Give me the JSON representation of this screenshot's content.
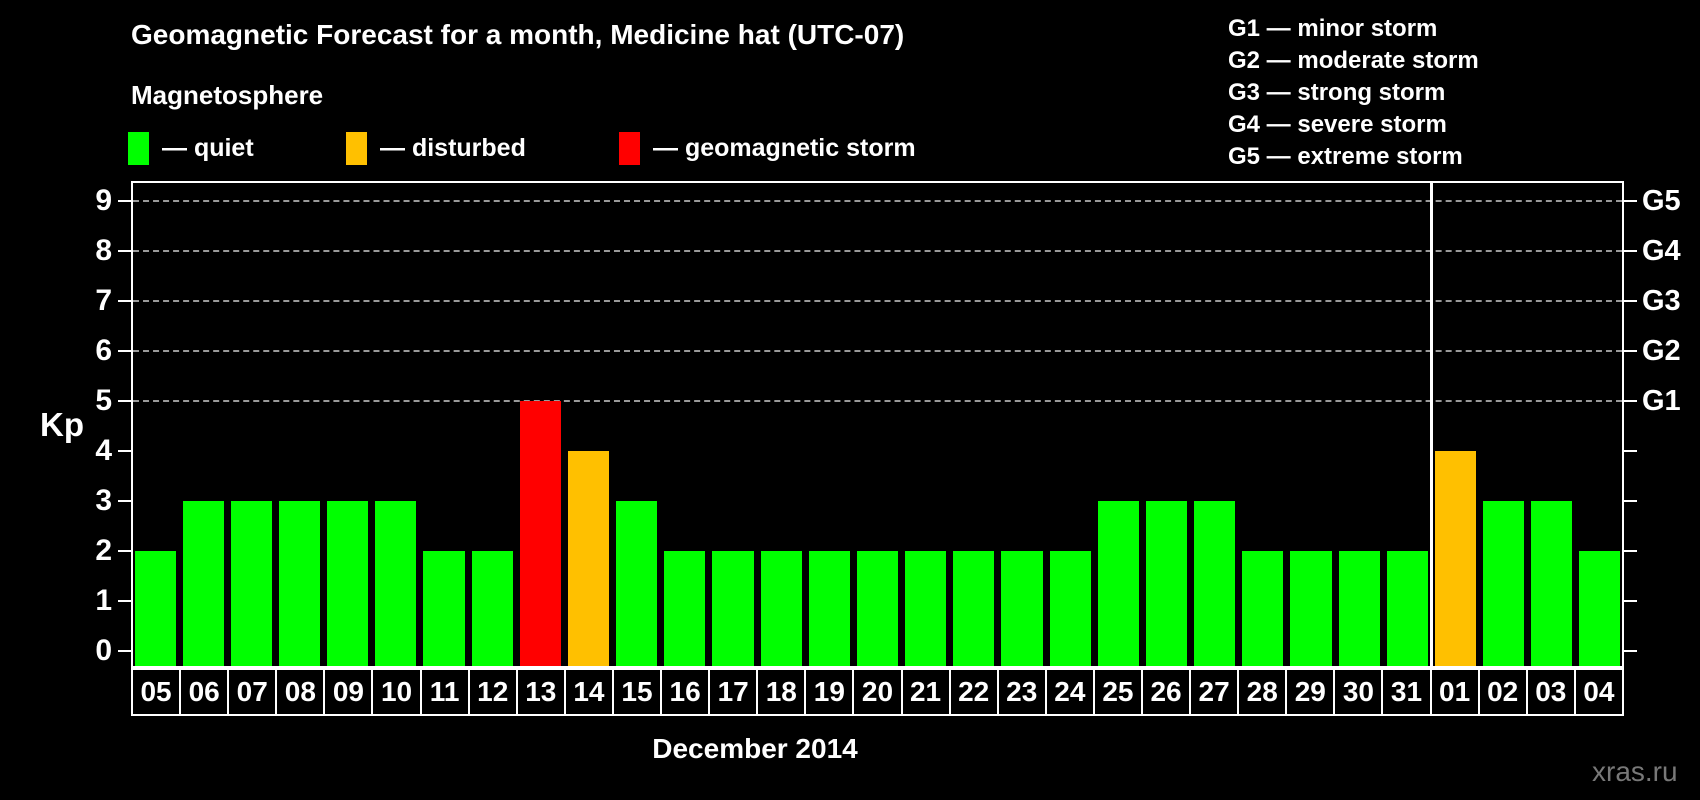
{
  "header": {
    "title": "Geomagnetic Forecast for a month, Medicine hat (UTC-07)",
    "subtitle": "Magnetosphere",
    "legend": [
      {
        "name": "quiet",
        "label": "— quiet",
        "color": "#00ff00"
      },
      {
        "name": "disturbed",
        "label": "— disturbed",
        "color": "#ffc000"
      },
      {
        "name": "storm",
        "label": "— geomagnetic storm",
        "color": "#ff0000"
      }
    ],
    "storm_scale_legend": [
      "G1 — minor storm",
      "G2 — moderate storm",
      "G3 — strong storm",
      "G4 — severe storm",
      "G5 — extreme storm"
    ]
  },
  "chart_data": {
    "type": "bar",
    "title": "Geomagnetic Forecast for a month, Medicine hat (UTC-07)",
    "xlabel": "December 2014",
    "ylabel": "Kp",
    "ylim": [
      0,
      9
    ],
    "yticks": [
      0,
      1,
      2,
      3,
      4,
      5,
      6,
      7,
      8,
      9
    ],
    "gridlines_at": [
      5,
      6,
      7,
      8,
      9
    ],
    "grid": "dashed horizontal at storm levels only",
    "legend_position": "top",
    "right_axis_labels": [
      {
        "label": "G1",
        "kp": 5
      },
      {
        "label": "G2",
        "kp": 6
      },
      {
        "label": "G3",
        "kp": 7
      },
      {
        "label": "G4",
        "kp": 8
      },
      {
        "label": "G5",
        "kp": 9
      }
    ],
    "palette": {
      "quiet": "#00ff00",
      "disturbed": "#ffc000",
      "storm": "#ff0000"
    },
    "separator_after_index": 26,
    "series": [
      {
        "day": "05",
        "kp": 2,
        "status": "quiet"
      },
      {
        "day": "06",
        "kp": 3,
        "status": "quiet"
      },
      {
        "day": "07",
        "kp": 3,
        "status": "quiet"
      },
      {
        "day": "08",
        "kp": 3,
        "status": "quiet"
      },
      {
        "day": "09",
        "kp": 3,
        "status": "quiet"
      },
      {
        "day": "10",
        "kp": 3,
        "status": "quiet"
      },
      {
        "day": "11",
        "kp": 2,
        "status": "quiet"
      },
      {
        "day": "12",
        "kp": 2,
        "status": "quiet"
      },
      {
        "day": "13",
        "kp": 5,
        "status": "storm"
      },
      {
        "day": "14",
        "kp": 4,
        "status": "disturbed"
      },
      {
        "day": "15",
        "kp": 3,
        "status": "quiet"
      },
      {
        "day": "16",
        "kp": 2,
        "status": "quiet"
      },
      {
        "day": "17",
        "kp": 2,
        "status": "quiet"
      },
      {
        "day": "18",
        "kp": 2,
        "status": "quiet"
      },
      {
        "day": "19",
        "kp": 2,
        "status": "quiet"
      },
      {
        "day": "20",
        "kp": 2,
        "status": "quiet"
      },
      {
        "day": "21",
        "kp": 2,
        "status": "quiet"
      },
      {
        "day": "22",
        "kp": 2,
        "status": "quiet"
      },
      {
        "day": "23",
        "kp": 2,
        "status": "quiet"
      },
      {
        "day": "24",
        "kp": 2,
        "status": "quiet"
      },
      {
        "day": "25",
        "kp": 3,
        "status": "quiet"
      },
      {
        "day": "26",
        "kp": 3,
        "status": "quiet"
      },
      {
        "day": "27",
        "kp": 3,
        "status": "quiet"
      },
      {
        "day": "28",
        "kp": 2,
        "status": "quiet"
      },
      {
        "day": "29",
        "kp": 2,
        "status": "quiet"
      },
      {
        "day": "30",
        "kp": 2,
        "status": "quiet"
      },
      {
        "day": "31",
        "kp": 2,
        "status": "quiet"
      },
      {
        "day": "01",
        "kp": 4,
        "status": "disturbed"
      },
      {
        "day": "02",
        "kp": 3,
        "status": "quiet"
      },
      {
        "day": "03",
        "kp": 3,
        "status": "quiet"
      },
      {
        "day": "04",
        "kp": 2,
        "status": "quiet"
      }
    ]
  },
  "watermark": "xras.ru"
}
